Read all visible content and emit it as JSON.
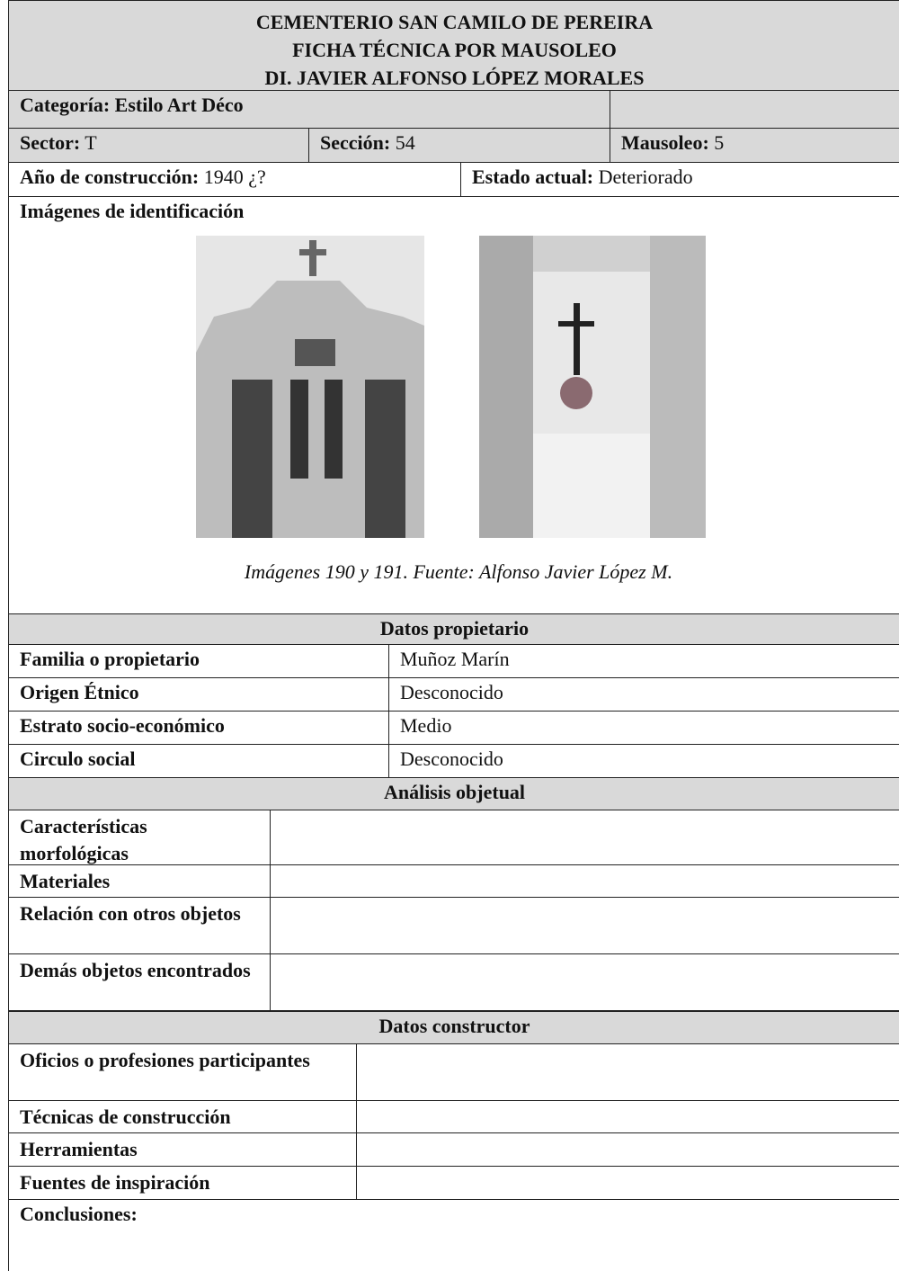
{
  "header": {
    "lines": [
      "CEMENTERIO SAN CAMILO DE PEREIRA",
      "FICHA TÉCNICA POR MAUSOLEO",
      "DI. JAVIER ALFONSO LÓPEZ MORALES"
    ]
  },
  "categoria": "Categoría: Estilo Art Déco",
  "sector": {
    "label": "Sector:",
    "value": "T"
  },
  "seccion": {
    "label": "Sección:",
    "value": "54"
  },
  "mausoleo": {
    "label": "Mausoleo:",
    "value": "5"
  },
  "anio": {
    "label": "Año de construcción:",
    "value": "1940 ¿?"
  },
  "estado": {
    "label": "Estado actual:",
    "value": "Deteriorado"
  },
  "images": {
    "title": "Imágenes de identificación",
    "caption": "Imágenes 190 y 191. Fuente: Alfonso Javier López M."
  },
  "propietario": {
    "title": "Datos propietario",
    "rows": [
      [
        "Familia o propietario",
        "Muñoz Marín"
      ],
      [
        "Origen Étnico",
        "Desconocido"
      ],
      [
        "Estrato socio-económico",
        "Medio"
      ],
      [
        "Circulo social",
        "Desconocido"
      ]
    ]
  },
  "analisis": {
    "title": "Análisis objetual",
    "rows": [
      "Características morfológicas",
      "Materiales",
      "Relación con otros objetos",
      "Demás objetos encontrados"
    ]
  },
  "constructor": {
    "title": "Datos constructor",
    "rows": [
      "Oficios o profesiones participantes",
      "Técnicas de construcción",
      "Herramientas",
      "Fuentes de inspiración"
    ]
  },
  "conclusiones": "Conclusiones:"
}
